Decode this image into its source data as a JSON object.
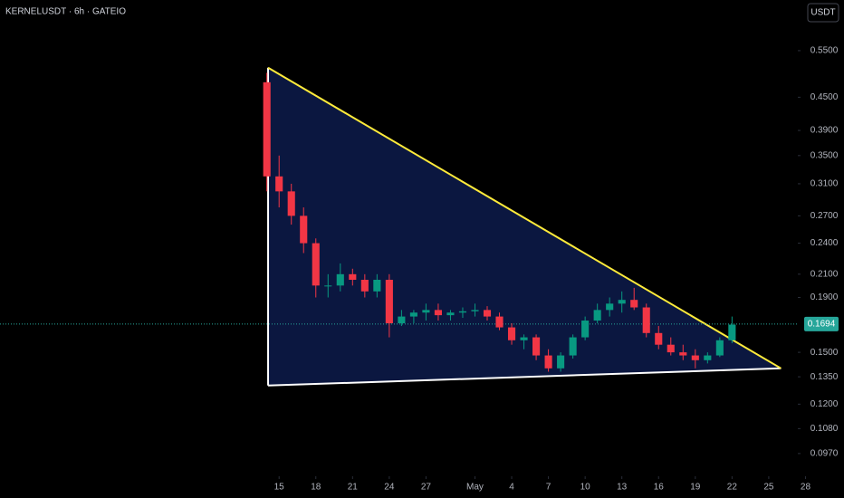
{
  "chart_data": {
    "type": "candlestick",
    "title": "KERNELUSDT · 6h · GATEIO",
    "currency": "USDT",
    "log_scale": true,
    "xlim": [
      -22.8,
      42.3
    ],
    "ylim": [
      0.0883,
      0.684
    ],
    "xticks": [
      {
        "value": 0,
        "label": "15"
      },
      {
        "value": 3,
        "label": "18"
      },
      {
        "value": 6,
        "label": "21"
      },
      {
        "value": 9,
        "label": "24"
      },
      {
        "value": 12,
        "label": "27"
      },
      {
        "value": 16,
        "label": "May"
      },
      {
        "value": 19,
        "label": "4"
      },
      {
        "value": 22,
        "label": "7"
      },
      {
        "value": 25,
        "label": "10"
      },
      {
        "value": 28,
        "label": "13"
      },
      {
        "value": 31,
        "label": "16"
      },
      {
        "value": 34,
        "label": "19"
      },
      {
        "value": 37,
        "label": "22"
      },
      {
        "value": 40,
        "label": "25"
      },
      {
        "value": 43,
        "label": "28"
      }
    ],
    "yticks": [
      {
        "value": 0.55,
        "label": "0.5500"
      },
      {
        "value": 0.45,
        "label": "0.4500"
      },
      {
        "value": 0.39,
        "label": "0.3900"
      },
      {
        "value": 0.35,
        "label": "0.3500"
      },
      {
        "value": 0.31,
        "label": "0.3100"
      },
      {
        "value": 0.27,
        "label": "0.2700"
      },
      {
        "value": 0.24,
        "label": "0.2400"
      },
      {
        "value": 0.21,
        "label": "0.2100"
      },
      {
        "value": 0.19,
        "label": "0.1900"
      },
      {
        "value": 0.15,
        "label": "0.1500"
      },
      {
        "value": 0.135,
        "label": "0.1350"
      },
      {
        "value": 0.12,
        "label": "0.1200"
      },
      {
        "value": 0.108,
        "label": "0.1080"
      },
      {
        "value": 0.097,
        "label": "0.0970"
      }
    ],
    "last_price": {
      "value": 0.1694,
      "label": "0.1694",
      "color": "#26a69a"
    },
    "up_color": "#089981",
    "down_color": "#f23645",
    "x": [
      -1,
      0,
      1,
      2,
      3,
      4,
      5,
      6,
      7,
      8,
      9,
      10,
      11,
      12,
      13,
      14,
      15,
      16,
      17,
      18,
      19,
      20,
      21,
      22,
      23,
      24,
      25,
      26,
      27,
      28,
      29,
      30,
      31,
      32,
      33,
      34,
      35,
      36,
      37
    ],
    "open": [
      0.48,
      0.32,
      0.3,
      0.27,
      0.24,
      0.2,
      0.2,
      0.21,
      0.205,
      0.195,
      0.205,
      0.17,
      0.175,
      0.178,
      0.18,
      0.176,
      0.178,
      0.179,
      0.18,
      0.175,
      0.167,
      0.158,
      0.16,
      0.148,
      0.14,
      0.148,
      0.16,
      0.172,
      0.18,
      0.185,
      0.188,
      0.182,
      0.163,
      0.155,
      0.15,
      0.148,
      0.145,
      0.148,
      0.158
    ],
    "high": [
      0.5,
      0.35,
      0.31,
      0.28,
      0.245,
      0.21,
      0.22,
      0.215,
      0.21,
      0.21,
      0.21,
      0.18,
      0.18,
      0.185,
      0.185,
      0.18,
      0.182,
      0.185,
      0.183,
      0.178,
      0.17,
      0.162,
      0.162,
      0.152,
      0.15,
      0.162,
      0.175,
      0.185,
      0.19,
      0.195,
      0.198,
      0.185,
      0.168,
      0.16,
      0.155,
      0.152,
      0.15,
      0.16,
      0.175
    ],
    "low": [
      0.3,
      0.28,
      0.26,
      0.23,
      0.19,
      0.19,
      0.195,
      0.2,
      0.19,
      0.19,
      0.16,
      0.168,
      0.17,
      0.172,
      0.172,
      0.172,
      0.174,
      0.175,
      0.172,
      0.165,
      0.155,
      0.152,
      0.145,
      0.138,
      0.138,
      0.146,
      0.158,
      0.17,
      0.175,
      0.178,
      0.18,
      0.16,
      0.152,
      0.148,
      0.145,
      0.14,
      0.143,
      0.147,
      0.156
    ],
    "close": [
      0.32,
      0.3,
      0.27,
      0.24,
      0.2,
      0.2,
      0.21,
      0.205,
      0.195,
      0.205,
      0.17,
      0.175,
      0.178,
      0.18,
      0.176,
      0.178,
      0.179,
      0.18,
      0.175,
      0.167,
      0.158,
      0.16,
      0.148,
      0.14,
      0.148,
      0.16,
      0.172,
      0.18,
      0.185,
      0.188,
      0.182,
      0.163,
      0.155,
      0.15,
      0.148,
      0.145,
      0.148,
      0.158,
      0.169
    ],
    "triangle": {
      "x": [
        -0.9,
        -0.9,
        41.0
      ],
      "y": [
        0.511,
        0.13,
        0.14
      ],
      "fill": "#0c1a47",
      "edge_colors": [
        "#ffffff",
        "#ffffff",
        "#ffeb3b"
      ]
    }
  }
}
